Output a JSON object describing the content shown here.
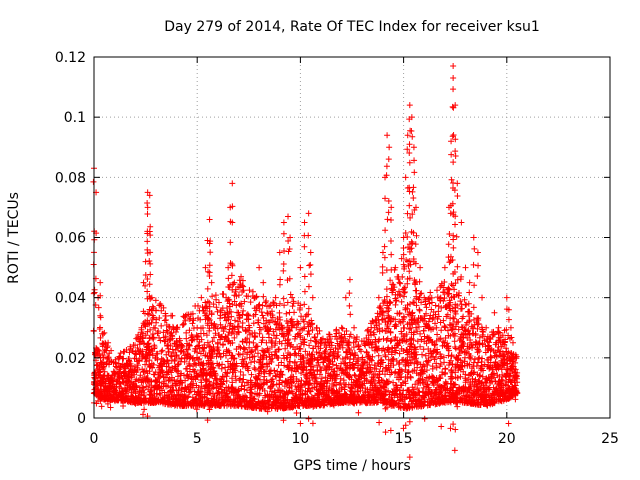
{
  "chart_data": {
    "type": "scatter",
    "title": "Day 279 of 2014, Rate Of TEC Index for receiver ksu1",
    "xlabel": "GPS time / hours",
    "ylabel": "ROTI / TECUs",
    "xlim": [
      0,
      25
    ],
    "ylim": [
      0,
      0.12
    ],
    "xticks": [
      0,
      5,
      10,
      15,
      20,
      25
    ],
    "xtick_labels": [
      "0",
      "5",
      "10",
      "15",
      "20",
      "25"
    ],
    "yticks": [
      0,
      0.02,
      0.04,
      0.06,
      0.08,
      0.1,
      0.12
    ],
    "ytick_labels": [
      "0",
      "0.02",
      "0.04",
      "0.06",
      "0.08",
      "0.1",
      "0.12"
    ],
    "grid": true,
    "marker": "+",
    "color": "#ff0000",
    "series": [
      {
        "x": [
          0.0,
          0.1,
          0.1,
          0.2,
          0.3,
          0.3,
          0.4,
          0.5,
          0.6,
          0.7,
          0.8,
          1.0,
          1.2,
          1.4,
          1.6,
          1.8,
          2.0,
          2.2,
          2.3,
          2.4,
          2.5,
          2.6,
          2.6,
          2.7,
          2.7,
          2.8,
          2.9,
          3.0,
          3.2,
          3.4,
          3.6,
          3.8,
          4.0,
          4.2,
          4.4,
          4.6,
          4.8,
          5.0,
          5.2,
          5.4,
          5.5,
          5.6,
          5.6,
          5.7,
          5.8,
          6.0,
          6.2,
          6.4,
          6.5,
          6.6,
          6.7,
          6.7,
          6.8,
          7.0,
          7.2,
          7.4,
          7.6,
          7.8,
          8.0,
          8.2,
          8.4,
          8.6,
          8.8,
          9.0,
          9.2,
          9.4,
          9.5,
          9.6,
          9.8,
          10.0,
          10.2,
          10.4,
          10.5,
          10.6,
          10.8,
          11.0,
          11.2,
          11.4,
          11.6,
          11.8,
          12.0,
          12.2,
          12.4,
          12.6,
          12.8,
          13.0,
          13.2,
          13.4,
          13.6,
          13.8,
          14.0,
          14.1,
          14.2,
          14.3,
          14.4,
          14.6,
          14.8,
          15.0,
          15.1,
          15.2,
          15.3,
          15.4,
          15.5,
          15.6,
          15.8,
          16.0,
          16.2,
          16.4,
          16.6,
          16.8,
          17.0,
          17.2,
          17.3,
          17.4,
          17.4,
          17.5,
          17.6,
          17.8,
          18.0,
          18.2,
          18.4,
          18.6,
          18.8,
          19.0,
          19.2,
          19.4,
          19.6,
          19.8,
          20.0,
          20.1,
          20.2,
          20.3,
          20.4,
          20.5
        ],
        "y": [
          0.083,
          0.075,
          0.021,
          0.04,
          0.045,
          0.034,
          0.028,
          0.022,
          0.018,
          0.014,
          0.012,
          0.01,
          0.015,
          0.012,
          0.018,
          0.014,
          0.016,
          0.022,
          0.03,
          0.045,
          0.052,
          0.075,
          0.07,
          0.074,
          0.062,
          0.04,
          0.03,
          0.02,
          0.016,
          0.018,
          0.022,
          0.034,
          0.03,
          0.022,
          0.02,
          0.018,
          0.02,
          0.03,
          0.04,
          0.05,
          0.059,
          0.066,
          0.058,
          0.045,
          0.03,
          0.025,
          0.03,
          0.04,
          0.05,
          0.07,
          0.078,
          0.065,
          0.045,
          0.035,
          0.03,
          0.025,
          0.022,
          0.04,
          0.05,
          0.045,
          0.03,
          0.025,
          0.04,
          0.055,
          0.065,
          0.067,
          0.06,
          0.04,
          0.03,
          0.05,
          0.065,
          0.068,
          0.055,
          0.04,
          0.03,
          0.025,
          0.02,
          0.018,
          0.022,
          0.02,
          0.03,
          0.04,
          0.046,
          0.03,
          0.02,
          0.018,
          0.022,
          0.025,
          0.03,
          0.04,
          0.055,
          0.08,
          0.094,
          0.09,
          0.07,
          0.05,
          0.045,
          0.06,
          0.08,
          0.094,
          0.104,
          0.1,
          0.09,
          0.07,
          0.05,
          0.04,
          0.03,
          0.025,
          0.03,
          0.04,
          0.05,
          0.07,
          0.092,
          0.117,
          0.113,
          0.104,
          0.078,
          0.065,
          0.05,
          0.045,
          0.06,
          0.055,
          0.04,
          0.03,
          0.02,
          0.035,
          0.03,
          0.025,
          0.04,
          0.036,
          0.03,
          0.025,
          0.02,
          0.015
        ]
      }
    ],
    "band": {
      "x": [
        0.0,
        0.5,
        1.0,
        2.0,
        3.0,
        4.0,
        5.0,
        6.0,
        7.0,
        8.0,
        9.0,
        10.0,
        11.0,
        12.0,
        13.0,
        14.0,
        15.0,
        16.0,
        17.0,
        18.0,
        19.0,
        20.0,
        20.5
      ],
      "low": [
        0.008,
        0.006,
        0.006,
        0.005,
        0.005,
        0.004,
        0.004,
        0.004,
        0.004,
        0.003,
        0.003,
        0.004,
        0.004,
        0.005,
        0.005,
        0.005,
        0.003,
        0.004,
        0.005,
        0.005,
        0.004,
        0.006,
        0.008
      ],
      "high": [
        0.022,
        0.03,
        0.02,
        0.026,
        0.04,
        0.032,
        0.038,
        0.042,
        0.048,
        0.04,
        0.038,
        0.04,
        0.028,
        0.03,
        0.026,
        0.04,
        0.058,
        0.04,
        0.046,
        0.04,
        0.028,
        0.03,
        0.02
      ]
    }
  }
}
